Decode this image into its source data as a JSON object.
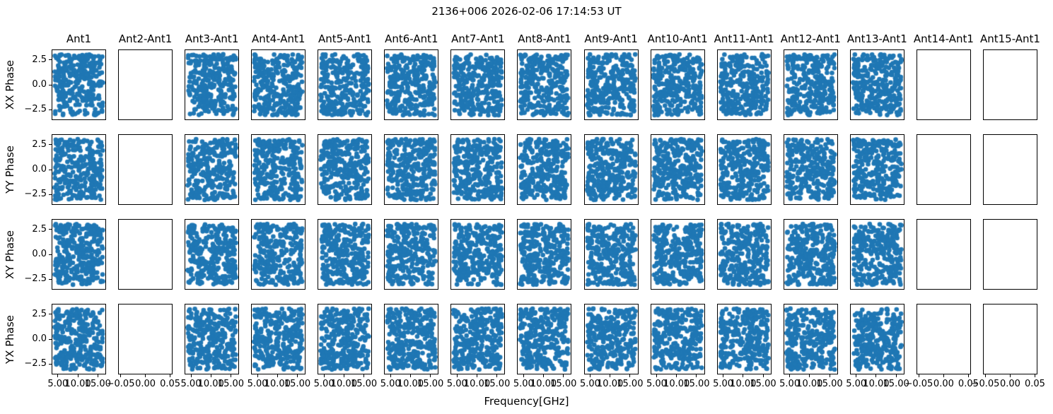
{
  "chart_data": {
    "type": "scatter",
    "title": "2136+006 2026-02-06 17:14:53 UT",
    "grid": {
      "rows": 4,
      "cols": 15
    },
    "row_labels": [
      "XX Phase",
      "YY Phase",
      "XY Phase",
      "YX Phase"
    ],
    "col_labels": [
      "Ant1",
      "Ant2-Ant1",
      "Ant3-Ant1",
      "Ant4-Ant1",
      "Ant5-Ant1",
      "Ant6-Ant1",
      "Ant7-Ant1",
      "Ant8-Ant1",
      "Ant9-Ant1",
      "Ant10-Ant1",
      "Ant11-Ant1",
      "Ant12-Ant1",
      "Ant13-Ant1",
      "Ant14-Ant1",
      "Ant15-Ant1"
    ],
    "empty_col_indices": [
      1,
      13,
      14
    ],
    "x_axis": {
      "label": "Frequency[GHz]",
      "lim": [
        3.43,
        17.07
      ],
      "ticks": [
        5.0,
        10.0,
        15.0
      ],
      "tick_labels": [
        "5.00",
        "10.00",
        "15.00"
      ],
      "ticks_shown_on": "bottom-row-only"
    },
    "x_axis_empty_panels": {
      "lim": [
        -0.055,
        0.055
      ],
      "ticks": [
        -0.05,
        0.0,
        0.05
      ],
      "tick_labels": [
        "−0.05",
        "0.00",
        "0.05"
      ]
    },
    "y_axis": {
      "lim": [
        -3.57,
        3.57
      ],
      "ticks": [
        2.5,
        0.0,
        -2.5
      ],
      "tick_labels": [
        "2.5",
        "0.0",
        "−2.5"
      ],
      "ticks_shown_on": "left-column-only"
    },
    "series": {
      "name": "phase-vs-frequency",
      "marker_color": "#1f77b4",
      "marker_radius_px": 3.3,
      "points_per_panel": 300,
      "x_data_range_ghz": [
        4.05,
        16.45
      ],
      "y_data_range_rad": [
        -3.14,
        3.14
      ],
      "distribution": "uniform-random",
      "prng_seed_base": 7
    },
    "grid_lines": false,
    "legend": null
  }
}
